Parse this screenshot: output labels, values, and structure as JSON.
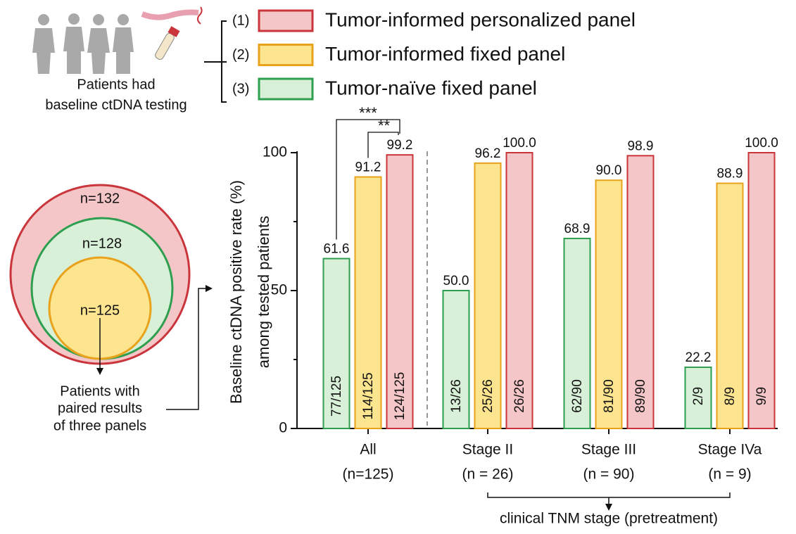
{
  "chart_data": {
    "type": "bar",
    "ylabel": [
      "Baseline ctDNA positive rate (%)",
      "among tested patients"
    ],
    "xlabel": "clinical TNM stage (pretreatment)",
    "categories": [
      [
        "All",
        "(n=125)"
      ],
      [
        "Stage II",
        "(n = 26)"
      ],
      [
        "Stage III",
        "(n = 90)"
      ],
      [
        "Stage IVa",
        "(n = 9)"
      ]
    ],
    "series": [
      {
        "name": "Tumor-naïve fixed panel",
        "legend_number": "(3)",
        "color": "#2e9e4f",
        "fill": "#d8efd8",
        "values": [
          61.6,
          50.0,
          68.9,
          22.2
        ],
        "value_labels": [
          "61.6",
          "50.0",
          "68.9",
          "22.2"
        ],
        "fractions": [
          "77/125",
          "13/26",
          "62/90",
          "2/9"
        ]
      },
      {
        "name": "Tumor-informed fixed panel",
        "legend_number": "(2)",
        "color": "#e8a21b",
        "fill": "#fde48e",
        "values": [
          91.2,
          96.2,
          90.0,
          88.9
        ],
        "value_labels": [
          "91.2",
          "96.2",
          "90.0",
          "88.9"
        ],
        "fractions": [
          "114/125",
          "25/26",
          "81/90",
          "8/9"
        ]
      },
      {
        "name": "Tumor-informed personalized panel",
        "legend_number": "(1)",
        "color": "#c9353b",
        "fill": "#f5c6c8",
        "values": [
          99.2,
          100.0,
          98.9,
          100.0
        ],
        "value_labels": [
          "99.2",
          "100.0",
          "98.9",
          "100.0"
        ],
        "fractions": [
          "124/125",
          "26/26",
          "89/90",
          "9/9"
        ]
      }
    ],
    "ylim": [
      0,
      100
    ],
    "yticks": [
      0,
      50,
      100
    ],
    "minor_yticks": [
      25,
      75
    ],
    "significance": [
      "***",
      "**"
    ]
  },
  "illustration": {
    "patients_caption": [
      "Patients had",
      "baseline ctDNA testing"
    ],
    "circles": [
      "n=132",
      "n=128",
      "n=125"
    ],
    "paired_caption": [
      "Patients with",
      "paired results",
      "of three panels"
    ]
  }
}
